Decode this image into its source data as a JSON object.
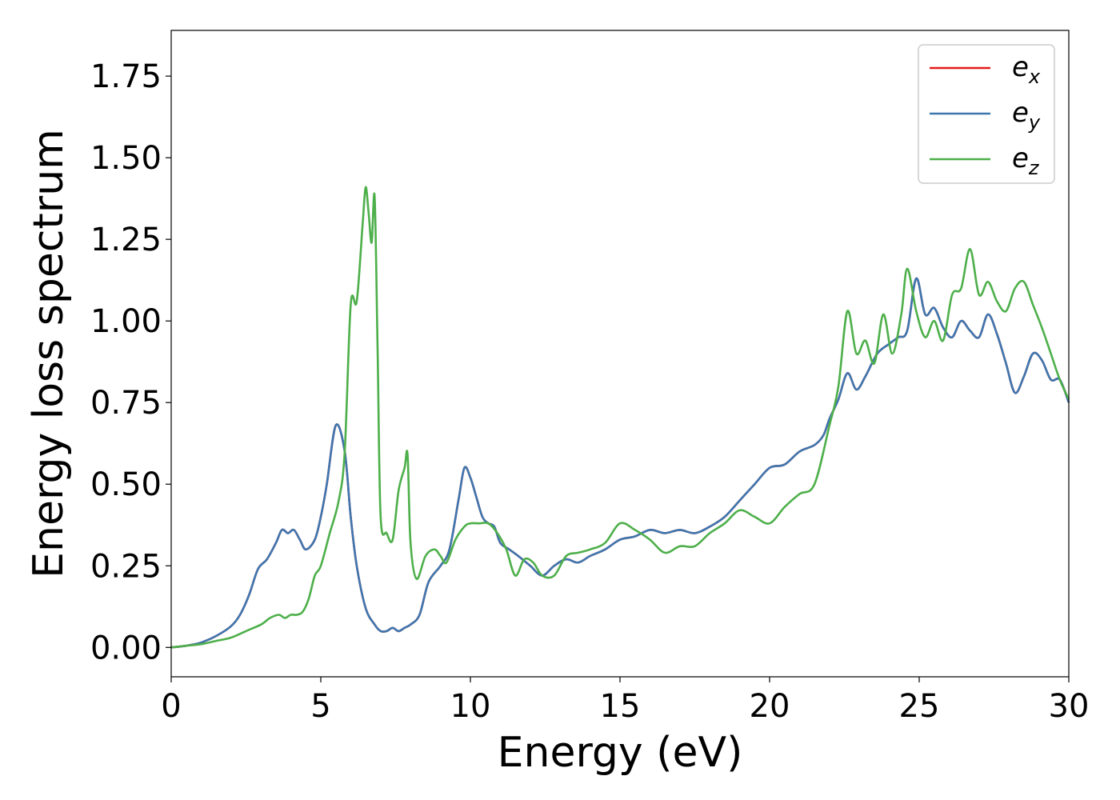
{
  "chart_data": {
    "type": "line",
    "title": "",
    "xlabel": "Energy (eV)",
    "ylabel": "Energy loss spectrum",
    "xlim": [
      0,
      30
    ],
    "ylim": [
      -0.09,
      1.89
    ],
    "xticks": [
      "0",
      "5",
      "10",
      "15",
      "20",
      "25",
      "30"
    ],
    "yticks": [
      "0.00",
      "0.25",
      "0.50",
      "0.75",
      "1.00",
      "1.25",
      "1.50",
      "1.75"
    ],
    "grid": false,
    "legend_position": "top-right",
    "series": [
      {
        "name": "e_x",
        "legend_base": "e",
        "legend_sub": "x",
        "color": "#e41a1c",
        "x": [
          0,
          0.5,
          1,
          1.5,
          2,
          2.3,
          2.6,
          2.9,
          3.2,
          3.5,
          3.7,
          3.9,
          4.1,
          4.3,
          4.5,
          4.8,
          5.0,
          5.2,
          5.5,
          5.8,
          6.0,
          6.2,
          6.5,
          6.8,
          7.0,
          7.2,
          7.4,
          7.6,
          7.8,
          8.0,
          8.3,
          8.6,
          9.0,
          9.3,
          9.6,
          9.8,
          10.0,
          10.2,
          10.4,
          10.6,
          10.8,
          11.0,
          11.3,
          11.6,
          12.0,
          12.4,
          12.8,
          13.2,
          13.6,
          14.0,
          14.5,
          15.0,
          15.5,
          16.0,
          16.5,
          17.0,
          17.5,
          18.0,
          18.5,
          19.0,
          19.5,
          20.0,
          20.5,
          21.0,
          21.5,
          21.8,
          22.0,
          22.3,
          22.6,
          22.9,
          23.2,
          23.6,
          24.0,
          24.3,
          24.6,
          24.9,
          25.2,
          25.5,
          25.8,
          26.1,
          26.4,
          26.7,
          27.0,
          27.3,
          27.6,
          27.9,
          28.2,
          28.5,
          28.8,
          29.1,
          29.4,
          29.7,
          30.0
        ],
        "y": [
          0.0,
          0.005,
          0.015,
          0.035,
          0.065,
          0.1,
          0.16,
          0.24,
          0.27,
          0.32,
          0.36,
          0.35,
          0.36,
          0.33,
          0.3,
          0.33,
          0.4,
          0.5,
          0.68,
          0.6,
          0.4,
          0.25,
          0.12,
          0.07,
          0.05,
          0.05,
          0.06,
          0.05,
          0.06,
          0.07,
          0.1,
          0.2,
          0.25,
          0.3,
          0.45,
          0.55,
          0.52,
          0.46,
          0.4,
          0.38,
          0.37,
          0.32,
          0.3,
          0.28,
          0.25,
          0.22,
          0.25,
          0.27,
          0.26,
          0.28,
          0.3,
          0.33,
          0.34,
          0.36,
          0.35,
          0.36,
          0.35,
          0.37,
          0.4,
          0.45,
          0.5,
          0.55,
          0.56,
          0.6,
          0.62,
          0.65,
          0.7,
          0.76,
          0.84,
          0.79,
          0.83,
          0.9,
          0.93,
          0.95,
          0.97,
          1.13,
          1.02,
          1.04,
          0.98,
          0.95,
          1.0,
          0.97,
          0.95,
          1.02,
          0.96,
          0.87,
          0.78,
          0.83,
          0.9,
          0.88,
          0.82,
          0.82,
          0.75
        ]
      },
      {
        "name": "e_y",
        "legend_base": "e",
        "legend_sub": "y",
        "color": "#3d76af",
        "x": [
          0,
          0.5,
          1,
          1.5,
          2,
          2.3,
          2.6,
          2.9,
          3.2,
          3.5,
          3.7,
          3.9,
          4.1,
          4.3,
          4.5,
          4.8,
          5.0,
          5.2,
          5.5,
          5.8,
          6.0,
          6.2,
          6.5,
          6.8,
          7.0,
          7.2,
          7.4,
          7.6,
          7.8,
          8.0,
          8.3,
          8.6,
          9.0,
          9.3,
          9.6,
          9.8,
          10.0,
          10.2,
          10.4,
          10.6,
          10.8,
          11.0,
          11.3,
          11.6,
          12.0,
          12.4,
          12.8,
          13.2,
          13.6,
          14.0,
          14.5,
          15.0,
          15.5,
          16.0,
          16.5,
          17.0,
          17.5,
          18.0,
          18.5,
          19.0,
          19.5,
          20.0,
          20.5,
          21.0,
          21.5,
          21.8,
          22.0,
          22.3,
          22.6,
          22.9,
          23.2,
          23.6,
          24.0,
          24.3,
          24.6,
          24.9,
          25.2,
          25.5,
          25.8,
          26.1,
          26.4,
          26.7,
          27.0,
          27.3,
          27.6,
          27.9,
          28.2,
          28.5,
          28.8,
          29.1,
          29.4,
          29.7,
          30.0
        ],
        "y": [
          0.0,
          0.005,
          0.015,
          0.035,
          0.065,
          0.1,
          0.16,
          0.24,
          0.27,
          0.32,
          0.36,
          0.35,
          0.36,
          0.33,
          0.3,
          0.33,
          0.4,
          0.5,
          0.68,
          0.6,
          0.4,
          0.25,
          0.12,
          0.07,
          0.05,
          0.05,
          0.06,
          0.05,
          0.06,
          0.07,
          0.1,
          0.2,
          0.25,
          0.3,
          0.45,
          0.55,
          0.52,
          0.46,
          0.4,
          0.38,
          0.37,
          0.32,
          0.3,
          0.28,
          0.25,
          0.22,
          0.25,
          0.27,
          0.26,
          0.28,
          0.3,
          0.33,
          0.34,
          0.36,
          0.35,
          0.36,
          0.35,
          0.37,
          0.4,
          0.45,
          0.5,
          0.55,
          0.56,
          0.6,
          0.62,
          0.65,
          0.7,
          0.76,
          0.84,
          0.79,
          0.83,
          0.9,
          0.93,
          0.95,
          0.97,
          1.13,
          1.02,
          1.04,
          0.98,
          0.95,
          1.0,
          0.97,
          0.95,
          1.02,
          0.96,
          0.87,
          0.78,
          0.83,
          0.9,
          0.88,
          0.82,
          0.82,
          0.75
        ]
      },
      {
        "name": "e_z",
        "legend_base": "e",
        "legend_sub": "z",
        "color": "#4daf4a",
        "x": [
          0,
          0.5,
          1,
          1.5,
          2,
          2.5,
          3,
          3.3,
          3.6,
          3.8,
          4.0,
          4.2,
          4.4,
          4.6,
          4.8,
          5.0,
          5.3,
          5.6,
          5.8,
          6.0,
          6.2,
          6.4,
          6.5,
          6.6,
          6.7,
          6.8,
          6.9,
          7.0,
          7.2,
          7.4,
          7.6,
          7.8,
          7.9,
          8.0,
          8.2,
          8.5,
          8.8,
          9.0,
          9.2,
          9.5,
          9.8,
          10.0,
          10.3,
          10.6,
          10.9,
          11.2,
          11.5,
          11.8,
          12.1,
          12.4,
          12.8,
          13.2,
          13.6,
          14.0,
          14.5,
          15.0,
          15.5,
          16.0,
          16.5,
          17.0,
          17.5,
          18.0,
          18.5,
          19.0,
          19.5,
          20.0,
          20.5,
          21.0,
          21.5,
          22.0,
          22.3,
          22.6,
          22.9,
          23.2,
          23.5,
          23.8,
          24.1,
          24.4,
          24.6,
          24.9,
          25.2,
          25.5,
          25.8,
          26.1,
          26.4,
          26.7,
          27.0,
          27.3,
          27.6,
          27.9,
          28.2,
          28.5,
          28.8,
          29.1,
          29.4,
          29.7,
          30.0
        ],
        "y": [
          0.0,
          0.005,
          0.01,
          0.02,
          0.03,
          0.05,
          0.07,
          0.09,
          0.1,
          0.09,
          0.1,
          0.1,
          0.11,
          0.15,
          0.22,
          0.25,
          0.35,
          0.45,
          0.6,
          1.05,
          1.06,
          1.3,
          1.41,
          1.33,
          1.24,
          1.38,
          0.9,
          0.4,
          0.35,
          0.33,
          0.48,
          0.55,
          0.59,
          0.32,
          0.21,
          0.28,
          0.3,
          0.28,
          0.26,
          0.33,
          0.37,
          0.38,
          0.38,
          0.38,
          0.35,
          0.3,
          0.22,
          0.27,
          0.26,
          0.22,
          0.22,
          0.28,
          0.29,
          0.3,
          0.32,
          0.38,
          0.36,
          0.33,
          0.29,
          0.31,
          0.31,
          0.35,
          0.38,
          0.42,
          0.4,
          0.38,
          0.43,
          0.47,
          0.5,
          0.68,
          0.8,
          1.03,
          0.9,
          0.94,
          0.87,
          1.02,
          0.9,
          1.02,
          1.16,
          1.03,
          0.95,
          1.0,
          0.94,
          1.08,
          1.1,
          1.22,
          1.08,
          1.12,
          1.06,
          1.03,
          1.1,
          1.12,
          1.05,
          0.98,
          0.9,
          0.82,
          0.76
        ]
      }
    ]
  }
}
